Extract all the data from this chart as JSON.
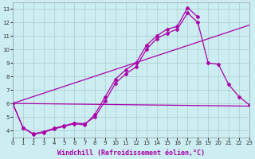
{
  "background_color": "#cceef2",
  "grid_color": "#aacccc",
  "line_color": "#aa00aa",
  "xlabel": "Windchill (Refroidissement éolien,°C)",
  "xlabel_fontsize": 6.0,
  "xlim": [
    0,
    23
  ],
  "ylim": [
    3.5,
    13.5
  ],
  "yticks": [
    4,
    5,
    6,
    7,
    8,
    9,
    10,
    11,
    12,
    13
  ],
  "xticks": [
    0,
    1,
    2,
    3,
    4,
    5,
    6,
    7,
    8,
    9,
    10,
    11,
    12,
    13,
    14,
    15,
    16,
    17,
    18,
    19,
    20,
    21,
    22,
    23
  ],
  "series": [
    {
      "x": [
        0,
        1,
        2,
        3,
        4,
        5,
        6,
        7,
        8,
        9,
        10,
        11,
        12,
        13,
        14,
        15,
        16,
        17,
        18,
        19,
        20,
        21,
        22,
        23
      ],
      "y": [
        6.0,
        4.2,
        3.7,
        3.85,
        4.1,
        4.3,
        4.5,
        4.4,
        5.2,
        6.5,
        7.8,
        8.5,
        9.0,
        10.3,
        11.0,
        11.5,
        11.7,
        13.1,
        12.4,
        null,
        null,
        null,
        null,
        null
      ],
      "marker": "D",
      "markersize": 2.0,
      "linewidth": 0.9,
      "linestyle": "-"
    },
    {
      "x": [
        0,
        1,
        2,
        3,
        4,
        5,
        6,
        7,
        8,
        9,
        10,
        11,
        12,
        13,
        14,
        15,
        16,
        17,
        18,
        19,
        20,
        21,
        22,
        23
      ],
      "y": [
        6.0,
        4.2,
        3.75,
        3.9,
        4.15,
        4.35,
        4.55,
        4.5,
        5.0,
        6.2,
        7.5,
        8.2,
        8.7,
        10.0,
        10.8,
        11.2,
        11.5,
        12.7,
        12.0,
        9.0,
        8.9,
        7.4,
        6.5,
        5.9
      ],
      "marker": "P",
      "markersize": 2.5,
      "linewidth": 0.9,
      "linestyle": "-"
    },
    {
      "x": [
        0,
        23
      ],
      "y": [
        6.0,
        11.8
      ],
      "marker": null,
      "markersize": 0,
      "linewidth": 0.9,
      "linestyle": "-"
    },
    {
      "x": [
        0,
        23
      ],
      "y": [
        6.0,
        5.8
      ],
      "marker": null,
      "markersize": 0,
      "linewidth": 0.9,
      "linestyle": "-"
    }
  ]
}
